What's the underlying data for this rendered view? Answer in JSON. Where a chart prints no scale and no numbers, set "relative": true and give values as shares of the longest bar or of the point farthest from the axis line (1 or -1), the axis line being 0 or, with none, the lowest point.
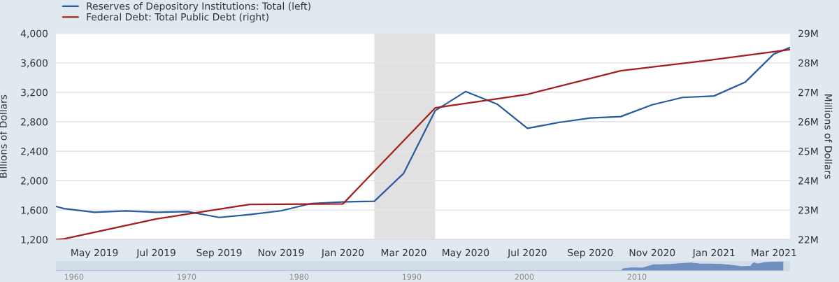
{
  "chart_data": [
    {
      "type": "line",
      "xlabel": null,
      "ylabel": "Billions of Dollars",
      "y2label": "Millions of Dollars",
      "series": [
        {
          "name": "Reserves of Depository Institutions: Total (left)",
          "color": "#275b9e",
          "x": [
            "2019-03-24",
            "2019-04-01",
            "2019-05-01",
            "2019-06-01",
            "2019-07-01",
            "2019-08-01",
            "2019-09-01",
            "2019-10-01",
            "2019-11-01",
            "2019-12-01",
            "2020-01-01",
            "2020-02-01",
            "2020-03-01",
            "2020-04-01",
            "2020-05-01",
            "2020-06-01",
            "2020-07-01",
            "2020-08-01",
            "2020-09-01",
            "2020-10-01",
            "2020-11-01",
            "2020-12-01",
            "2021-01-01",
            "2021-02-01",
            "2021-03-01",
            "2021-03-17"
          ],
          "values": [
            1650,
            1620,
            1570,
            1590,
            1570,
            1580,
            1500,
            1540,
            1590,
            1690,
            1710,
            1720,
            2100,
            2950,
            3210,
            3040,
            2710,
            2790,
            2850,
            2870,
            3030,
            3130,
            3150,
            3340,
            3720,
            3810
          ]
        },
        {
          "name": "Federal Debt: Total Public Debt (right)",
          "color": "#a51d1d",
          "axis": "y2",
          "x": [
            "2019-03-24",
            "2019-04-01",
            "2019-07-01",
            "2019-10-01",
            "2020-01-01",
            "2020-04-01",
            "2020-07-01",
            "2020-10-01",
            "2021-01-01",
            "2021-03-17"
          ],
          "values": [
            22.0,
            22.02,
            22.7,
            23.19,
            23.21,
            26.47,
            26.93,
            27.73,
            28.11,
            28.45
          ]
        }
      ],
      "xlim": [
        "2019-03-24",
        "2021-03-17"
      ],
      "xticks": [
        {
          "value": "2019-05-01",
          "label": "May 2019"
        },
        {
          "value": "2019-07-01",
          "label": "Jul 2019"
        },
        {
          "value": "2019-09-01",
          "label": "Sep 2019"
        },
        {
          "value": "2019-11-01",
          "label": "Nov 2019"
        },
        {
          "value": "2020-01-01",
          "label": "Jan 2020"
        },
        {
          "value": "2020-03-01",
          "label": "Mar 2020"
        },
        {
          "value": "2020-05-01",
          "label": "May 2020"
        },
        {
          "value": "2020-07-01",
          "label": "Jul 2020"
        },
        {
          "value": "2020-09-01",
          "label": "Sep 2020"
        },
        {
          "value": "2020-11-01",
          "label": "Nov 2020"
        },
        {
          "value": "2021-01-01",
          "label": "Jan 2021"
        },
        {
          "value": "2021-03-01",
          "label": "Mar 2021"
        }
      ],
      "ylim": [
        1200,
        4000
      ],
      "yticks": [
        {
          "value": 1200,
          "label": "1,200"
        },
        {
          "value": 1600,
          "label": "1,600"
        },
        {
          "value": 2000,
          "label": "2,000"
        },
        {
          "value": 2400,
          "label": "2,400"
        },
        {
          "value": 2800,
          "label": "2,800"
        },
        {
          "value": 3200,
          "label": "3,200"
        },
        {
          "value": 3600,
          "label": "3,600"
        },
        {
          "value": 4000,
          "label": "4,000"
        }
      ],
      "y2lim": [
        22,
        29
      ],
      "y2ticks": [
        {
          "value": 22,
          "label": "22M"
        },
        {
          "value": 23,
          "label": "23M"
        },
        {
          "value": 24,
          "label": "24M"
        },
        {
          "value": 25,
          "label": "25M"
        },
        {
          "value": 26,
          "label": "26M"
        },
        {
          "value": 27,
          "label": "27M"
        },
        {
          "value": 28,
          "label": "28M"
        },
        {
          "value": 29,
          "label": "29M"
        }
      ],
      "bands": [
        {
          "axis": "x",
          "from": "2020-02-01",
          "to": "2020-04-01",
          "color": "#e1e1e1"
        }
      ],
      "grid": "y",
      "legend": "top left",
      "marker": "none",
      "line_style": "solid"
    },
    {
      "type": "area",
      "relative": true,
      "tick_labels": "x",
      "series": [
        {
          "color": "#6f8fc0",
          "x": [
            1958.4,
            2008.6,
            2008.75,
            2009.0,
            2009.5,
            2010.0,
            2010.5,
            2011.0,
            2011.5,
            2012.0,
            2013.0,
            2014.0,
            2014.8,
            2015.5,
            2016.5,
            2017.5,
            2018.5,
            2019.3,
            2019.9,
            2020.1,
            2020.3,
            2020.45,
            2020.6,
            2020.9,
            2021.2,
            2021.5,
            2022.0,
            2023.0
          ],
          "values": [
            0.0,
            0.0,
            0.22,
            0.28,
            0.33,
            0.33,
            0.31,
            0.5,
            0.69,
            0.69,
            0.72,
            0.83,
            0.87,
            0.78,
            0.76,
            0.72,
            0.61,
            0.47,
            0.5,
            0.5,
            0.83,
            0.91,
            0.78,
            0.8,
            0.89,
            0.94,
            0.98,
            1.0
          ]
        }
      ],
      "xlim": [
        1958.4,
        2023.6
      ],
      "xticks": [
        1960,
        1970,
        1980,
        1990,
        2000,
        2010
      ]
    }
  ]
}
